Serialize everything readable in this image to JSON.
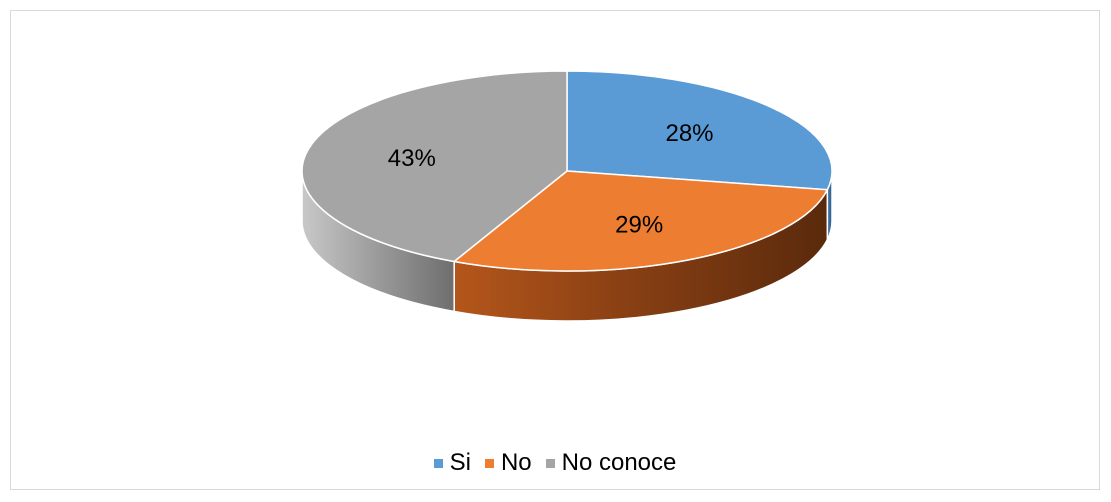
{
  "chart_data": {
    "type": "pie",
    "style": "3d",
    "categories": [
      "Si",
      "No",
      "No conoce"
    ],
    "values": [
      28,
      29,
      43
    ],
    "data_labels": [
      "28%",
      "29%",
      "43%"
    ],
    "colors": [
      "#5B9BD5",
      "#ED7D31",
      "#A5A5A5"
    ],
    "title": "",
    "legend_position": "bottom"
  }
}
